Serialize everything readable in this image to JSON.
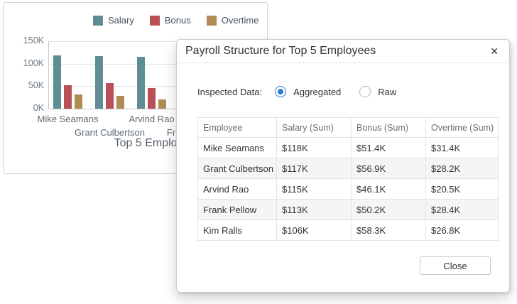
{
  "chart_data": {
    "type": "bar",
    "title": "Top 5 Employees",
    "categories": [
      "Mike Seamans",
      "Grant Culbertson",
      "Arvind Rao",
      "Frank Pellow",
      "Kim Ralls"
    ],
    "series": [
      {
        "name": "Salary",
        "color": "#5E8D96",
        "values": [
          118000,
          117000,
          115000,
          113000,
          106000
        ]
      },
      {
        "name": "Bonus",
        "color": "#BA4F55",
        "values": [
          51400,
          56900,
          46100,
          50200,
          58300
        ]
      },
      {
        "name": "Overtime",
        "color": "#B08C52",
        "values": [
          31400,
          28200,
          20500,
          28400,
          26800
        ]
      }
    ],
    "ylim": [
      0,
      150000
    ],
    "yticks": [
      {
        "value": 0,
        "label": "0K"
      },
      {
        "value": 50000,
        "label": "50K"
      },
      {
        "value": 100000,
        "label": "100K"
      },
      {
        "value": 150000,
        "label": "150K"
      }
    ],
    "grid": true,
    "legend_position": "top"
  },
  "dialog": {
    "title": "Payroll Structure for Top 5 Employees",
    "close_icon": "✕",
    "inspected_data_label": "Inspected Data:",
    "radio_options": [
      {
        "label": "Aggregated",
        "selected": true
      },
      {
        "label": "Raw",
        "selected": false
      }
    ],
    "table": {
      "columns": [
        "Employee",
        "Salary (Sum)",
        "Bonus (Sum)",
        "Overtime (Sum)"
      ],
      "rows": [
        [
          "Mike Seamans",
          "$118K",
          "$51.4K",
          "$31.4K"
        ],
        [
          "Grant Culbertson",
          "$117K",
          "$56.9K",
          "$28.2K"
        ],
        [
          "Arvind Rao",
          "$115K",
          "$46.1K",
          "$20.5K"
        ],
        [
          "Frank Pellow",
          "$113K",
          "$50.2K",
          "$28.4K"
        ],
        [
          "Kim Ralls",
          "$106K",
          "$58.3K",
          "$26.8K"
        ]
      ]
    },
    "close_button_label": "Close"
  }
}
